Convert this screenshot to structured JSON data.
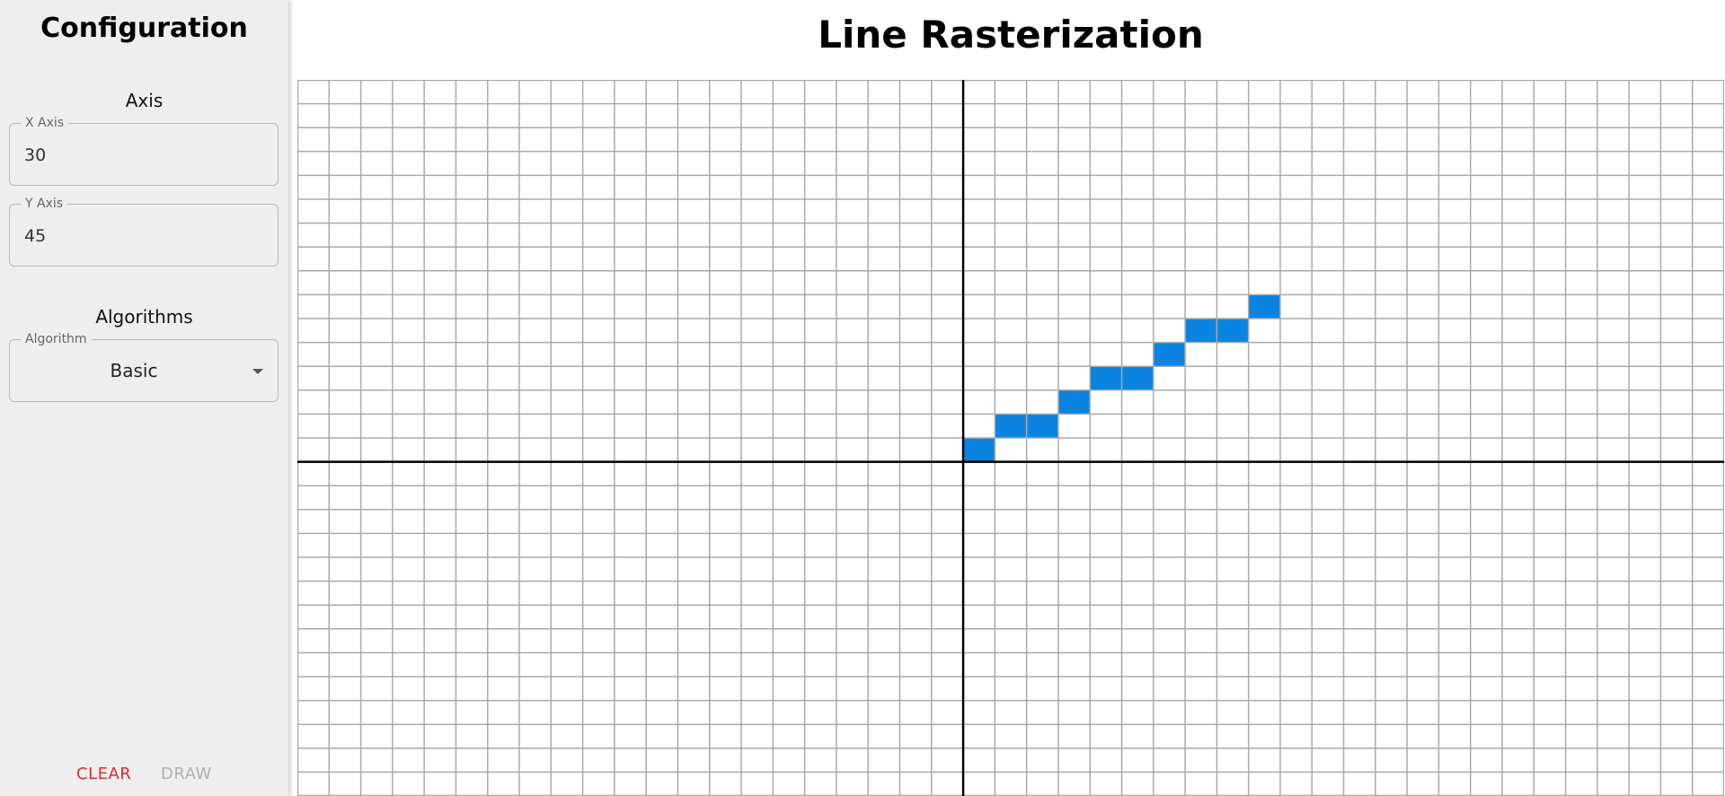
{
  "sidebar": {
    "title": "Configuration",
    "axis_section": {
      "title": "Axis",
      "x_axis": {
        "label": "X Axis",
        "value": "30"
      },
      "y_axis": {
        "label": "Y Axis",
        "value": "45"
      }
    },
    "algorithms_section": {
      "title": "Algorithms",
      "algorithm": {
        "label": "Algorithm",
        "selected": "Basic",
        "icon": "chevron-down-icon"
      }
    },
    "buttons": {
      "clear_label": "CLEAR",
      "draw_label": "DRAW"
    }
  },
  "main": {
    "title": "Line Rasterization"
  },
  "grid": {
    "line_color": "#aaaaaa",
    "axis_color": "#000000",
    "pixel_color": "#0a84e0",
    "filled_pixels": [
      [
        0,
        0
      ],
      [
        1,
        1
      ],
      [
        2,
        1
      ],
      [
        3,
        2
      ],
      [
        4,
        3
      ],
      [
        5,
        3
      ],
      [
        6,
        4
      ],
      [
        7,
        5
      ],
      [
        8,
        5
      ],
      [
        9,
        6
      ]
    ]
  },
  "colors": {
    "sidebar_background": "#eeeeee",
    "clear_button": "#d32f2f",
    "draw_button_disabled": "#b0b0b0"
  }
}
